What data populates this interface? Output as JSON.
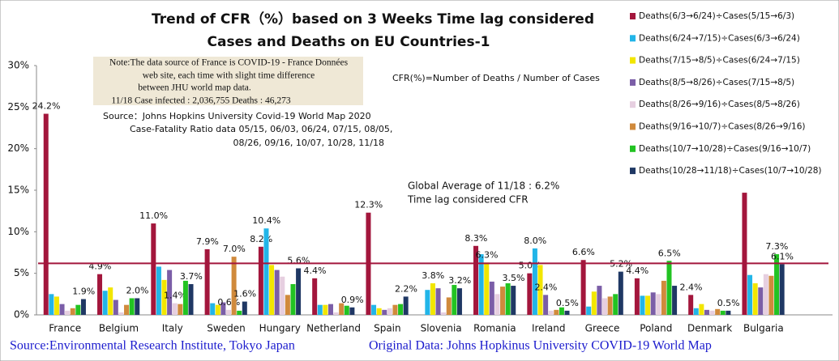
{
  "chart_data": {
    "type": "bar",
    "title": [
      "Trend of CFR（%）based on 3 Weeks Time lag considered",
      "Cases and Deaths on EU Countries-1"
    ],
    "categories": [
      "France",
      "Belgium",
      "Italy",
      "Sweden",
      "Hungary",
      "Netherland",
      "Spain",
      "Slovenia",
      "Romania",
      "Ireland",
      "Greece",
      "Poland",
      "Denmark",
      "Bulgaria"
    ],
    "series": [
      {
        "name": "Deaths(6/3→6/24)÷Cases(5/15→6/3)",
        "color": "#a3163c",
        "values": [
          24.2,
          4.9,
          11.0,
          7.9,
          8.2,
          4.4,
          12.3,
          0,
          8.3,
          5.0,
          6.6,
          4.4,
          2.4,
          14.7
        ],
        "value_labels": [
          "24.2%",
          "4.9%",
          "11.0%",
          "7.9%",
          "8.2%",
          "4.4%",
          "12.3%",
          null,
          "8.3%",
          "5.0%",
          "6.6%",
          "4.4%",
          "2.4%",
          null
        ]
      },
      {
        "name": "Deaths(6/24→7/15)÷Cases(6/3→6/24)",
        "color": "#22b5e8",
        "values": [
          2.5,
          2.9,
          5.8,
          1.4,
          10.4,
          1.2,
          1.2,
          3.0,
          7.3,
          8.0,
          1.0,
          2.3,
          0.8,
          4.8
        ],
        "value_labels": [
          null,
          null,
          null,
          null,
          "10.4%",
          null,
          null,
          null,
          null,
          "8.0%",
          null,
          null,
          null,
          null
        ]
      },
      {
        "name": "Deaths(7/15→8/5)÷Cases(6/24→7/15)",
        "color": "#f2e600",
        "values": [
          2.2,
          3.3,
          4.2,
          1.2,
          6.0,
          1.2,
          0.8,
          3.8,
          6.3,
          6.0,
          2.8,
          2.3,
          1.3,
          3.8
        ],
        "value_labels": [
          null,
          null,
          null,
          null,
          null,
          null,
          null,
          "3.8%",
          "6.3%",
          null,
          null,
          null,
          null,
          null
        ]
      },
      {
        "name": "Deaths(8/5→8/26)÷Cases(7/15→8/5)",
        "color": "#7b5ea7",
        "values": [
          1.3,
          1.8,
          5.4,
          1.5,
          5.4,
          1.3,
          0.6,
          3.2,
          4.0,
          2.4,
          3.5,
          2.7,
          0.6,
          3.3
        ],
        "value_labels": [
          null,
          null,
          null,
          null,
          null,
          null,
          null,
          null,
          null,
          "2.4%",
          null,
          null,
          null,
          null
        ]
      },
      {
        "name": "Deaths(8/26→9/16)÷Cases(8/5→8/26)",
        "color": "#e6cfe0",
        "values": [
          0.5,
          0.3,
          1.4,
          0.6,
          4.6,
          0.3,
          0.8,
          0.3,
          2.5,
          0.5,
          2.0,
          2.5,
          0.5,
          4.9
        ],
        "value_labels": [
          null,
          null,
          "1.4%",
          "0.6%",
          null,
          null,
          null,
          null,
          null,
          null,
          null,
          null,
          null,
          null
        ]
      },
      {
        "name": "Deaths(9/16→10/7)÷Cases(8/26→9/16)",
        "color": "#d08a3c",
        "values": [
          0.8,
          1.2,
          1.3,
          7.0,
          2.4,
          1.4,
          1.2,
          2.1,
          3.4,
          0.6,
          2.2,
          4.1,
          0.7,
          4.7
        ],
        "value_labels": [
          null,
          null,
          null,
          "7.0%",
          null,
          null,
          null,
          null,
          null,
          null,
          null,
          null,
          null,
          null
        ]
      },
      {
        "name": "Deaths(10/7→10/28)÷Cases(9/16→10/7)",
        "color": "#22c322",
        "values": [
          1.2,
          2.0,
          4.1,
          0.5,
          3.7,
          1.1,
          1.3,
          3.6,
          3.8,
          0.9,
          2.5,
          6.5,
          0.5,
          7.3
        ],
        "value_labels": [
          null,
          null,
          null,
          null,
          null,
          null,
          null,
          null,
          null,
          null,
          null,
          "6.5%",
          null,
          "7.3%"
        ]
      },
      {
        "name": "Deaths(10/28→11/18)÷Cases(10/7→10/28)",
        "color": "#1f3864",
        "values": [
          1.9,
          2.0,
          3.7,
          1.6,
          5.6,
          0.9,
          2.2,
          3.2,
          3.5,
          0.5,
          5.2,
          3.5,
          0.5,
          6.1
        ],
        "value_labels": [
          "1.9%",
          "2.0%",
          "3.7%",
          "1.6%",
          "5.6%",
          "0.9%",
          "2.2%",
          "3.2%",
          "3.5%",
          "0.5%",
          "5.2%",
          null,
          "0.5%",
          "6.1%"
        ]
      }
    ],
    "ylim": [
      0,
      30
    ],
    "yticks": [
      {
        "value": 0,
        "label": "0%"
      },
      {
        "value": 5,
        "label": "5%"
      },
      {
        "value": 10,
        "label": "10%"
      },
      {
        "value": 15,
        "label": "15%"
      },
      {
        "value": 20,
        "label": "20%"
      },
      {
        "value": 25,
        "label": "25%"
      },
      {
        "value": 30,
        "label": "30%"
      }
    ],
    "grid": false,
    "legend": "right",
    "reference_line": {
      "value": 6.2,
      "color": "#a3163c",
      "label": [
        "Global Average of 11/18 : 6.2%",
        "Time lag considered CFR"
      ]
    },
    "definition": "CFR(%)=Number of  Deaths / Number of Cases",
    "note": [
      "Note:The data source of France is COVID-19 - France Données",
      "web site, each time with slight time difference",
      "between JHU world map data.",
      "11/18 Case infected : 2,036,755    Deaths : 46,273"
    ],
    "source_note": [
      "Source：Johns Hopkins University    Covid-19 World Map 2020",
      "Case-Fatality Ratio data   05/15, 06/03, 06/24,  07/15, 08/05,",
      "08/26,  09/16, 10/07, 10/28,  11/18"
    ],
    "footer": [
      "Source:Environmental Research Institute, Tokyo Japan",
      "Original Data: Johns Hopkinus University COVID-19 World Map"
    ]
  }
}
